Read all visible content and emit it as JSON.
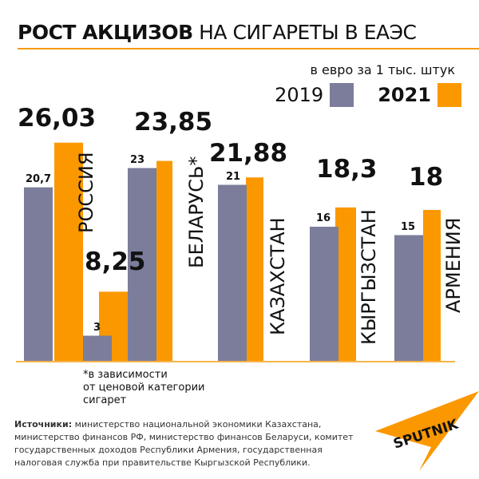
{
  "title": {
    "bold": "РОСТ АКЦИЗОВ",
    "rest": " НА СИГАРЕТЫ В ЕАЭС"
  },
  "unit": "в евро за 1 тыс. штук",
  "colors": {
    "y2019": "#7b7d9a",
    "y2021": "#fb9800",
    "accent": "#f39c12"
  },
  "chart_data": {
    "type": "bar",
    "categories": [
      "РОССИЯ",
      "БЕЛАРУСЬ*",
      "БЕЛАРУСЬ*",
      "КАЗАХСТАН",
      "КЫРГЫЗСТАН",
      "АРМЕНИЯ"
    ],
    "series": [
      {
        "name": "2019",
        "values": [
          20.7,
          3,
          23,
          21,
          16,
          15
        ],
        "labels": [
          "20,7",
          "3",
          "23",
          "21",
          "16",
          "15"
        ]
      },
      {
        "name": "2021",
        "values": [
          26.03,
          8.25,
          23.85,
          21.88,
          18.3,
          18
        ],
        "labels": [
          "26,03",
          "8,25",
          "23,85",
          "21,88",
          "18,3",
          "18"
        ]
      }
    ],
    "legend": "top-right",
    "grid": false
  },
  "country_labels": [
    "РОССИЯ",
    "БЕЛАРУСЬ*",
    "КАЗАХСТАН",
    "КЫРГЫЗСТАН",
    "АРМЕНИЯ"
  ],
  "note": [
    "*в зависимости",
    "от ценовой категории",
    "сигарет"
  ],
  "sources": {
    "label": "Источники:",
    "text": " министерство национальной экономики Казахстана, министерство финансов РФ,  министерство финансов Беларуси, комитет государственных доходов Республики Армения, государственная налоговая служба при правительстве Кыргызской Республики."
  },
  "logo": "SPUTNIK"
}
